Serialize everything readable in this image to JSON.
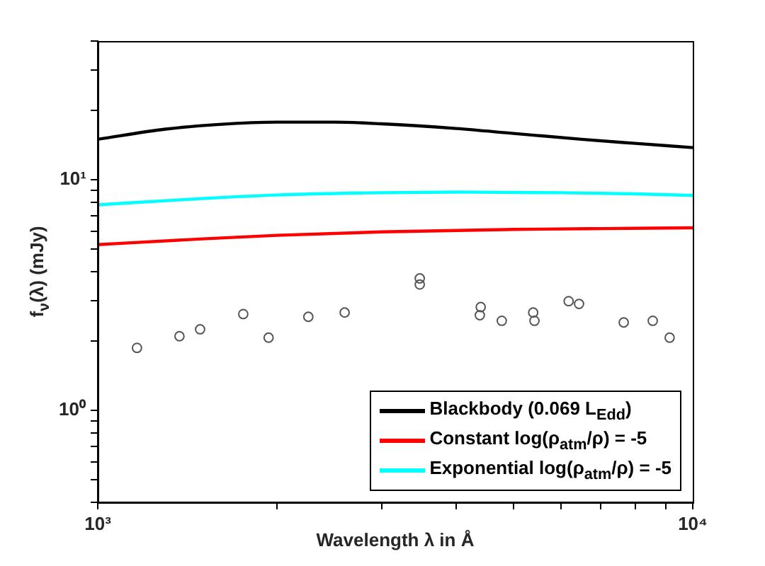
{
  "chart_data": {
    "type": "line",
    "xlabel": "Wavelength λ in Å",
    "ylabel": "f$_{ν}$(λ) (mJy)",
    "log": "xy",
    "xlim": [
      1000,
      10000
    ],
    "xticks": [
      {
        "value": 1000,
        "label": "10³"
      },
      {
        "value": 2000,
        "label": null
      },
      {
        "value": 3000,
        "label": null
      },
      {
        "value": 4000,
        "label": null
      },
      {
        "value": 5000,
        "label": null
      },
      {
        "value": 6000,
        "label": null
      },
      {
        "value": 7000,
        "label": null
      },
      {
        "value": 8000,
        "label": null
      },
      {
        "value": 9000,
        "label": null
      },
      {
        "value": 10000,
        "label": "10⁴"
      }
    ],
    "ylim": [
      0.4,
      40
    ],
    "yticks": [
      {
        "value": 0.4,
        "label": null
      },
      {
        "value": 0.5,
        "label": null
      },
      {
        "value": 0.6,
        "label": null
      },
      {
        "value": 0.7,
        "label": null
      },
      {
        "value": 0.8,
        "label": null
      },
      {
        "value": 0.9,
        "label": null
      },
      {
        "value": 1,
        "label": "10⁰"
      },
      {
        "value": 2,
        "label": null
      },
      {
        "value": 3,
        "label": null
      },
      {
        "value": 4,
        "label": null
      },
      {
        "value": 5,
        "label": null
      },
      {
        "value": 6,
        "label": null
      },
      {
        "value": 7,
        "label": null
      },
      {
        "value": 8,
        "label": null
      },
      {
        "value": 9,
        "label": null
      },
      {
        "value": 10,
        "label": "10¹"
      },
      {
        "value": 20,
        "label": null
      },
      {
        "value": 30,
        "label": null
      },
      {
        "value": 40,
        "label": null
      }
    ],
    "grid": false,
    "legend": "bottom right",
    "series": [
      {
        "name": "Blackbody (0.069 L$_{Edd}$)",
        "color": "#000000",
        "marker": "none",
        "x": [
          1000,
          1300,
          1600,
          2000,
          2500,
          3000,
          4000,
          5000,
          6500,
          8000,
          10000
        ],
        "values": [
          15.0,
          16.6,
          17.4,
          17.8,
          17.8,
          17.5,
          16.7,
          15.9,
          15.0,
          14.4,
          13.8
        ]
      },
      {
        "name": "Constant log(ρ$_{atm}$/ρ) = -5",
        "color": "#ff0000",
        "marker": "none",
        "x": [
          1000,
          1500,
          2000,
          3000,
          5000,
          7000,
          10000
        ],
        "values": [
          5.24,
          5.55,
          5.75,
          5.95,
          6.1,
          6.15,
          6.2
        ]
      },
      {
        "name": "Exponential log(ρ$_{atm}$/ρ) = -5",
        "color": "#00ffff",
        "marker": "none",
        "x": [
          1000,
          1500,
          2000,
          3000,
          4000,
          6000,
          8000,
          10000
        ],
        "values": [
          7.8,
          8.3,
          8.6,
          8.8,
          8.85,
          8.8,
          8.7,
          8.56
        ]
      },
      {
        "color": "#555555",
        "type": "scatter",
        "marker": "circle",
        "x": [
          1164,
          1372,
          1486,
          1756,
          1937,
          2259,
          2600,
          3477,
          3477,
          4402,
          4387,
          4776,
          5393,
          5420,
          6186,
          6440,
          7656,
          8566,
          9145
        ],
        "values": [
          1.87,
          2.1,
          2.25,
          2.62,
          2.07,
          2.55,
          2.66,
          3.74,
          3.52,
          2.81,
          2.59,
          2.45,
          2.66,
          2.45,
          2.98,
          2.9,
          2.41,
          2.45,
          2.07
        ]
      }
    ]
  }
}
